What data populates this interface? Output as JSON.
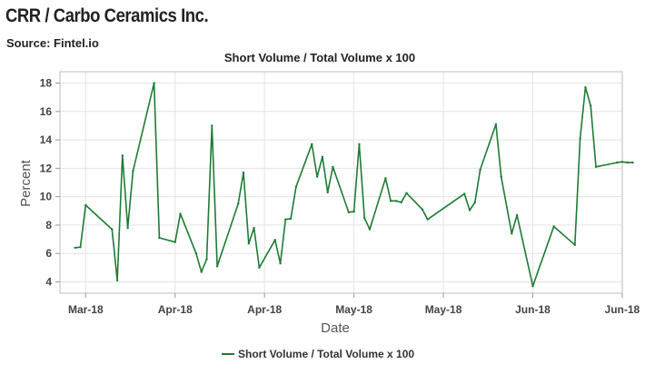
{
  "header": {
    "title": "CRR / Carbo Ceramics Inc.",
    "source": "Source: Fintel.io"
  },
  "chart_data": {
    "type": "line",
    "title": "Short Volume / Total Volume x 100",
    "xlabel": "Date",
    "ylabel": "Percent",
    "ylim": [
      3.2,
      18.8
    ],
    "yticks": [
      4,
      6,
      8,
      10,
      12,
      14,
      16,
      18
    ],
    "xtick_labels": [
      "Mar-18",
      "Apr-18",
      "Apr-18",
      "May-18",
      "May-18",
      "Jun-18",
      "Jun-18"
    ],
    "grid": true,
    "legend_position": "bottom",
    "series": [
      {
        "name": "Short Volume / Total Volume x 100",
        "color": "#1e7b34",
        "x": [
          "2018-03-07",
          "2018-03-08",
          "2018-03-09",
          "2018-03-14",
          "2018-03-15",
          "2018-03-16",
          "2018-03-17",
          "2018-03-18",
          "2018-03-22",
          "2018-03-23",
          "2018-03-26",
          "2018-03-27",
          "2018-03-30",
          "2018-03-31",
          "2018-04-01",
          "2018-04-02",
          "2018-04-03",
          "2018-04-07",
          "2018-04-08",
          "2018-04-09",
          "2018-04-10",
          "2018-04-11",
          "2018-04-14",
          "2018-04-15",
          "2018-04-16",
          "2018-04-17",
          "2018-04-18",
          "2018-04-21",
          "2018-04-22",
          "2018-04-23",
          "2018-04-24",
          "2018-04-25",
          "2018-04-28",
          "2018-04-29",
          "2018-04-30",
          "2018-05-01",
          "2018-05-02",
          "2018-05-05",
          "2018-05-06",
          "2018-05-07",
          "2018-05-08",
          "2018-05-09",
          "2018-05-12",
          "2018-05-13",
          "2018-05-20",
          "2018-05-21",
          "2018-05-22",
          "2018-05-23",
          "2018-05-26",
          "2018-05-27",
          "2018-05-29",
          "2018-05-30",
          "2018-06-02",
          "2018-06-06",
          "2018-06-10",
          "2018-06-11",
          "2018-06-12",
          "2018-06-13",
          "2018-06-14",
          "2018-06-18",
          "2018-06-19",
          "2018-06-20",
          "2018-06-21"
        ],
        "values": [
          6.4,
          6.45,
          9.4,
          7.7,
          4.1,
          12.9,
          7.8,
          11.8,
          18.0,
          7.1,
          6.8,
          8.8,
          6.0,
          4.7,
          5.6,
          15.0,
          5.1,
          9.5,
          11.7,
          6.7,
          7.8,
          5.0,
          6.95,
          5.3,
          8.4,
          8.45,
          10.7,
          13.7,
          11.4,
          12.8,
          10.3,
          12.1,
          8.9,
          8.95,
          13.7,
          8.5,
          7.7,
          11.3,
          9.7,
          9.7,
          9.6,
          10.25,
          9.1,
          8.4,
          10.2,
          9.05,
          9.6,
          11.9,
          15.1,
          11.4,
          7.4,
          8.7,
          3.7,
          7.9,
          6.6,
          14.1,
          17.7,
          16.4,
          12.1,
          12.4,
          12.45,
          12.4,
          12.4
        ]
      }
    ]
  }
}
